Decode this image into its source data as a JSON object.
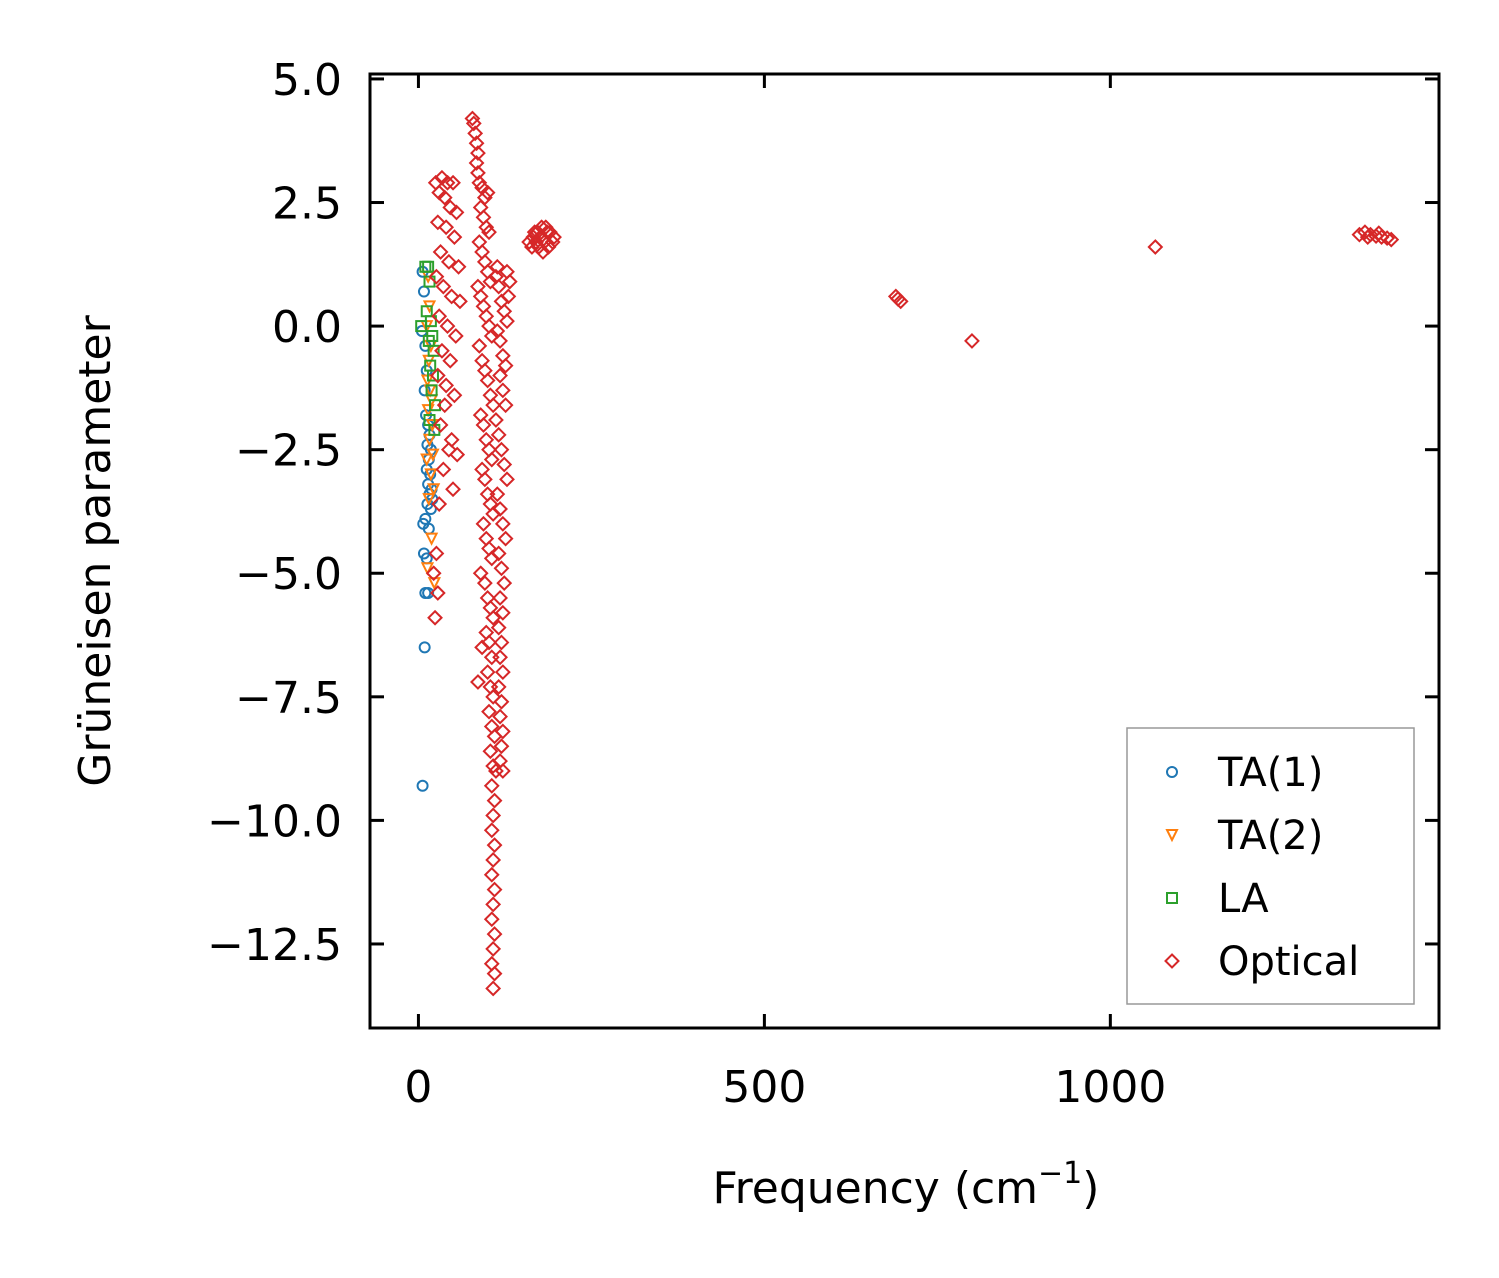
{
  "chart_data": {
    "type": "scatter",
    "title": "",
    "xlabel": "Frequency (cm",
    "xlabel_sup": "−1",
    "xlabel_end": ")",
    "ylabel": "Grüneisen parameter",
    "xlim": [
      -70,
      1475
    ],
    "ylim": [
      -14.2,
      5.1
    ],
    "xticks": [
      0,
      500,
      1000
    ],
    "xtick_labels": [
      "0",
      "500",
      "1000"
    ],
    "yticks": [
      5.0,
      2.5,
      0.0,
      -2.5,
      -5.0,
      -7.5,
      -10.0,
      -12.5
    ],
    "ytick_labels": [
      "5.0",
      "2.5",
      "0.0",
      "−2.5",
      "−5.0",
      "−7.5",
      "−10.0",
      "−12.5"
    ],
    "grid": false,
    "legend_position": "bottom-right",
    "series": [
      {
        "name": "TA(1)",
        "color": "#1f77b4",
        "marker": "circle",
        "points": [
          [
            6,
            1.1
          ],
          [
            8,
            0.7
          ],
          [
            5,
            -0.1
          ],
          [
            10,
            -0.4
          ],
          [
            12,
            -0.9
          ],
          [
            9,
            -1.3
          ],
          [
            11,
            -1.8
          ],
          [
            14,
            -2.0
          ],
          [
            16,
            -2.2
          ],
          [
            13,
            -2.4
          ],
          [
            18,
            -2.5
          ],
          [
            15,
            -2.7
          ],
          [
            12,
            -2.9
          ],
          [
            17,
            -3.0
          ],
          [
            14,
            -3.2
          ],
          [
            19,
            -3.3
          ],
          [
            16,
            -3.4
          ],
          [
            13,
            -3.6
          ],
          [
            18,
            -3.7
          ],
          [
            20,
            -3.5
          ],
          [
            10,
            -3.9
          ],
          [
            7,
            -4.0
          ],
          [
            15,
            -4.1
          ],
          [
            8,
            -4.6
          ],
          [
            12,
            -4.7
          ],
          [
            10,
            -5.4
          ],
          [
            14,
            -5.4
          ],
          [
            9,
            -6.5
          ],
          [
            6,
            -9.3
          ]
        ]
      },
      {
        "name": "TA(2)",
        "color": "#ff7f0e",
        "marker": "triangle-down",
        "points": [
          [
            14,
            1.0
          ],
          [
            16,
            0.4
          ],
          [
            12,
            0.0
          ],
          [
            18,
            -0.4
          ],
          [
            15,
            -0.7
          ],
          [
            13,
            -1.1
          ],
          [
            17,
            -1.3
          ],
          [
            19,
            -1.5
          ],
          [
            14,
            -1.7
          ],
          [
            20,
            -2.0
          ],
          [
            16,
            -2.3
          ],
          [
            21,
            -2.6
          ],
          [
            12,
            -2.7
          ],
          [
            18,
            -3.0
          ],
          [
            22,
            -3.3
          ],
          [
            15,
            -3.5
          ],
          [
            19,
            -4.3
          ],
          [
            13,
            -4.9
          ],
          [
            23,
            -5.2
          ]
        ]
      },
      {
        "name": "LA",
        "color": "#2ca02c",
        "marker": "square",
        "points": [
          [
            4,
            0.0
          ],
          [
            10,
            1.2
          ],
          [
            14,
            1.2
          ],
          [
            16,
            0.9
          ],
          [
            12,
            0.3
          ],
          [
            18,
            0.1
          ],
          [
            20,
            -0.2
          ],
          [
            15,
            -0.3
          ],
          [
            22,
            -0.5
          ],
          [
            17,
            -0.8
          ],
          [
            21,
            -1.0
          ],
          [
            19,
            -1.3
          ],
          [
            24,
            -1.6
          ],
          [
            16,
            -1.9
          ],
          [
            23,
            -2.1
          ]
        ]
      },
      {
        "name": "Optical",
        "color": "#d62728",
        "marker": "diamond",
        "points": [
          [
            25,
            2.9
          ],
          [
            34,
            3.0
          ],
          [
            42,
            2.9
          ],
          [
            50,
            2.9
          ],
          [
            30,
            2.7
          ],
          [
            38,
            2.6
          ],
          [
            46,
            2.4
          ],
          [
            55,
            2.3
          ],
          [
            28,
            2.1
          ],
          [
            40,
            2.0
          ],
          [
            52,
            1.8
          ],
          [
            32,
            1.5
          ],
          [
            44,
            1.3
          ],
          [
            58,
            1.2
          ],
          [
            26,
            1.0
          ],
          [
            36,
            0.8
          ],
          [
            48,
            0.6
          ],
          [
            60,
            0.5
          ],
          [
            30,
            0.2
          ],
          [
            42,
            0.0
          ],
          [
            54,
            -0.2
          ],
          [
            34,
            -0.5
          ],
          [
            46,
            -0.7
          ],
          [
            28,
            -1.0
          ],
          [
            40,
            -1.2
          ],
          [
            52,
            -1.4
          ],
          [
            38,
            -1.6
          ],
          [
            32,
            -2.0
          ],
          [
            48,
            -2.3
          ],
          [
            44,
            -2.5
          ],
          [
            56,
            -2.6
          ],
          [
            36,
            -2.9
          ],
          [
            50,
            -3.3
          ],
          [
            30,
            -3.6
          ],
          [
            26,
            -4.6
          ],
          [
            22,
            -5.0
          ],
          [
            28,
            -5.4
          ],
          [
            24,
            -5.9
          ],
          [
            78,
            4.2
          ],
          [
            80,
            4.1
          ],
          [
            82,
            3.9
          ],
          [
            84,
            3.7
          ],
          [
            86,
            3.5
          ],
          [
            84,
            3.3
          ],
          [
            86,
            3.1
          ],
          [
            88,
            2.9
          ],
          [
            92,
            2.8
          ],
          [
            96,
            2.6
          ],
          [
            100,
            2.7
          ],
          [
            90,
            2.4
          ],
          [
            94,
            2.2
          ],
          [
            98,
            2.0
          ],
          [
            102,
            1.9
          ],
          [
            88,
            1.7
          ],
          [
            92,
            1.5
          ],
          [
            96,
            1.3
          ],
          [
            100,
            1.1
          ],
          [
            104,
            0.9
          ],
          [
            86,
            0.8
          ],
          [
            90,
            0.6
          ],
          [
            94,
            0.4
          ],
          [
            98,
            0.2
          ],
          [
            102,
            0.0
          ],
          [
            106,
            -0.2
          ],
          [
            88,
            -0.4
          ],
          [
            92,
            -0.7
          ],
          [
            96,
            -0.9
          ],
          [
            100,
            -1.1
          ],
          [
            104,
            -1.4
          ],
          [
            108,
            -1.6
          ],
          [
            90,
            -1.8
          ],
          [
            94,
            -2.0
          ],
          [
            98,
            -2.3
          ],
          [
            102,
            -2.5
          ],
          [
            106,
            -2.7
          ],
          [
            92,
            -2.9
          ],
          [
            96,
            -3.1
          ],
          [
            100,
            -3.4
          ],
          [
            104,
            -3.6
          ],
          [
            108,
            -3.8
          ],
          [
            94,
            -4.0
          ],
          [
            98,
            -4.3
          ],
          [
            102,
            -4.5
          ],
          [
            106,
            -4.7
          ],
          [
            90,
            -5.0
          ],
          [
            96,
            -5.2
          ],
          [
            100,
            -5.5
          ],
          [
            104,
            -5.7
          ],
          [
            108,
            -5.9
          ],
          [
            98,
            -6.2
          ],
          [
            102,
            -6.4
          ],
          [
            92,
            -6.5
          ],
          [
            106,
            -6.7
          ],
          [
            100,
            -7.0
          ],
          [
            86,
            -7.2
          ],
          [
            104,
            -7.3
          ],
          [
            108,
            -7.5
          ],
          [
            102,
            -7.8
          ],
          [
            106,
            -8.1
          ],
          [
            110,
            -8.3
          ],
          [
            104,
            -8.6
          ],
          [
            108,
            -8.9
          ],
          [
            112,
            -9.0
          ],
          [
            106,
            -9.3
          ],
          [
            110,
            -9.6
          ],
          [
            108,
            -9.9
          ],
          [
            106,
            -10.2
          ],
          [
            110,
            -10.5
          ],
          [
            108,
            -10.8
          ],
          [
            106,
            -11.1
          ],
          [
            110,
            -11.4
          ],
          [
            108,
            -11.7
          ],
          [
            106,
            -12.0
          ],
          [
            110,
            -12.3
          ],
          [
            108,
            -12.6
          ],
          [
            106,
            -12.9
          ],
          [
            110,
            -13.1
          ],
          [
            108,
            -13.4
          ],
          [
            112,
            1.0
          ],
          [
            116,
            0.8
          ],
          [
            120,
            0.5
          ],
          [
            124,
            0.3
          ],
          [
            128,
            0.1
          ],
          [
            114,
            -0.1
          ],
          [
            118,
            -0.3
          ],
          [
            122,
            -0.6
          ],
          [
            126,
            -0.8
          ],
          [
            130,
            0.6
          ],
          [
            132,
            0.9
          ],
          [
            128,
            1.1
          ],
          [
            114,
            1.2
          ],
          [
            118,
            -1.0
          ],
          [
            122,
            -1.3
          ],
          [
            126,
            -1.6
          ],
          [
            112,
            -1.9
          ],
          [
            116,
            -2.2
          ],
          [
            120,
            -2.5
          ],
          [
            124,
            -2.8
          ],
          [
            128,
            -3.1
          ],
          [
            114,
            -3.4
          ],
          [
            118,
            -3.7
          ],
          [
            122,
            -4.0
          ],
          [
            126,
            -4.3
          ],
          [
            116,
            -4.6
          ],
          [
            120,
            -4.9
          ],
          [
            124,
            -5.2
          ],
          [
            118,
            -5.5
          ],
          [
            122,
            -5.8
          ],
          [
            116,
            -6.1
          ],
          [
            120,
            -6.4
          ],
          [
            118,
            -6.7
          ],
          [
            122,
            -7.0
          ],
          [
            116,
            -7.3
          ],
          [
            120,
            -7.6
          ],
          [
            118,
            -7.9
          ],
          [
            122,
            -8.2
          ],
          [
            120,
            -8.5
          ],
          [
            118,
            -8.8
          ],
          [
            122,
            -9.0
          ],
          [
            160,
            1.7
          ],
          [
            166,
            1.8
          ],
          [
            172,
            1.9
          ],
          [
            178,
            2.0
          ],
          [
            184,
            2.0
          ],
          [
            190,
            1.9
          ],
          [
            196,
            1.8
          ],
          [
            164,
            1.6
          ],
          [
            170,
            1.7
          ],
          [
            176,
            1.8
          ],
          [
            182,
            1.7
          ],
          [
            188,
            1.6
          ],
          [
            194,
            1.7
          ],
          [
            174,
            1.6
          ],
          [
            180,
            1.5
          ],
          [
            186,
            1.9
          ],
          [
            168,
            1.9
          ],
          [
            690,
            0.6
          ],
          [
            693,
            0.55
          ],
          [
            697,
            0.5
          ],
          [
            800,
            -0.3
          ],
          [
            1065,
            1.6
          ],
          [
            1360,
            1.85
          ],
          [
            1368,
            1.9
          ],
          [
            1376,
            1.85
          ],
          [
            1384,
            1.82
          ],
          [
            1392,
            1.8
          ],
          [
            1400,
            1.78
          ],
          [
            1406,
            1.75
          ],
          [
            1372,
            1.8
          ],
          [
            1388,
            1.88
          ]
        ]
      }
    ]
  }
}
